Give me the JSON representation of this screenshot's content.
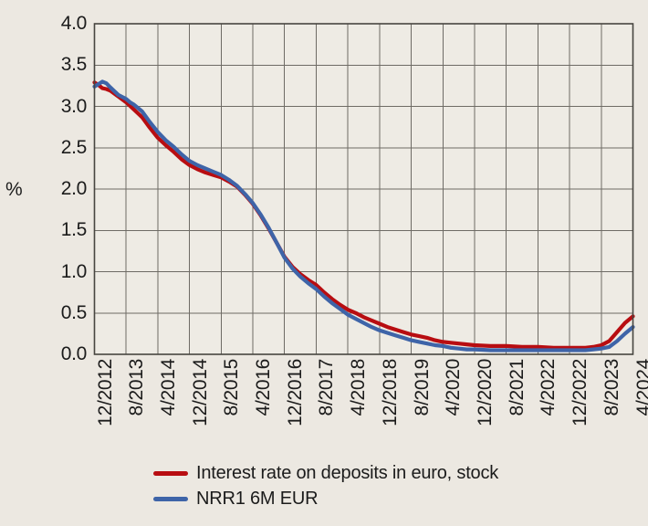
{
  "colors": {
    "background": "#ECE8E1",
    "plot_background": "#EEEBE4",
    "grid": "#6E6B65",
    "border": "#474540",
    "text": "#1B1B1B",
    "series_red": "#B80D11",
    "series_blue": "#3E64A8"
  },
  "chart_data": {
    "type": "line",
    "title": "",
    "ylabel": "%",
    "xlabel": "",
    "grid": true,
    "legend_position": "bottom",
    "ylim": [
      0.0,
      4.0
    ],
    "y_tick_step": 0.5,
    "y_tick_labels": [
      "0.0",
      "0.5",
      "1.0",
      "1.5",
      "2.0",
      "2.5",
      "3.0",
      "3.5",
      "4.0"
    ],
    "xlim_months": [
      0,
      136
    ],
    "x_tick_months": [
      0,
      8,
      16,
      24,
      32,
      40,
      48,
      56,
      64,
      72,
      80,
      88,
      96,
      104,
      112,
      120,
      128,
      136
    ],
    "x_tick_labels": [
      "12/2012",
      "8/2013",
      "4/2014",
      "12/2014",
      "8/2015",
      "4/2016",
      "12/2016",
      "8/2017",
      "4/2018",
      "12/2018",
      "8/2019",
      "4/2020",
      "12/2020",
      "8/2021",
      "4/2022",
      "12/2022",
      "8/2023",
      "4/2024"
    ],
    "series": [
      {
        "name": "Interest rate on deposits in euro, stock",
        "color": "#B80D11",
        "points": [
          [
            0,
            3.29
          ],
          [
            1,
            3.26
          ],
          [
            2,
            3.22
          ],
          [
            3,
            3.21
          ],
          [
            4,
            3.19
          ],
          [
            6,
            3.12
          ],
          [
            8,
            3.05
          ],
          [
            10,
            2.96
          ],
          [
            12,
            2.87
          ],
          [
            14,
            2.74
          ],
          [
            16,
            2.62
          ],
          [
            18,
            2.53
          ],
          [
            20,
            2.45
          ],
          [
            22,
            2.36
          ],
          [
            24,
            2.29
          ],
          [
            26,
            2.24
          ],
          [
            28,
            2.2
          ],
          [
            30,
            2.17
          ],
          [
            32,
            2.14
          ],
          [
            34,
            2.09
          ],
          [
            36,
            2.03
          ],
          [
            38,
            1.93
          ],
          [
            40,
            1.82
          ],
          [
            42,
            1.68
          ],
          [
            44,
            1.52
          ],
          [
            46,
            1.35
          ],
          [
            48,
            1.18
          ],
          [
            50,
            1.06
          ],
          [
            52,
            0.97
          ],
          [
            54,
            0.9
          ],
          [
            56,
            0.84
          ],
          [
            58,
            0.75
          ],
          [
            60,
            0.67
          ],
          [
            62,
            0.6
          ],
          [
            64,
            0.54
          ],
          [
            66,
            0.5
          ],
          [
            68,
            0.45
          ],
          [
            70,
            0.41
          ],
          [
            72,
            0.37
          ],
          [
            74,
            0.33
          ],
          [
            76,
            0.3
          ],
          [
            78,
            0.27
          ],
          [
            80,
            0.24
          ],
          [
            82,
            0.22
          ],
          [
            84,
            0.2
          ],
          [
            86,
            0.17
          ],
          [
            88,
            0.15
          ],
          [
            90,
            0.14
          ],
          [
            92,
            0.13
          ],
          [
            94,
            0.12
          ],
          [
            96,
            0.11
          ],
          [
            100,
            0.1
          ],
          [
            104,
            0.1
          ],
          [
            108,
            0.09
          ],
          [
            112,
            0.09
          ],
          [
            116,
            0.08
          ],
          [
            120,
            0.08
          ],
          [
            124,
            0.08
          ],
          [
            126,
            0.09
          ],
          [
            128,
            0.11
          ],
          [
            130,
            0.16
          ],
          [
            132,
            0.27
          ],
          [
            134,
            0.38
          ],
          [
            136,
            0.46
          ]
        ]
      },
      {
        "name": "NRR1 6M EUR",
        "color": "#3E64A8",
        "points": [
          [
            0,
            3.24
          ],
          [
            1,
            3.27
          ],
          [
            2,
            3.3
          ],
          [
            3,
            3.28
          ],
          [
            4,
            3.23
          ],
          [
            6,
            3.14
          ],
          [
            8,
            3.09
          ],
          [
            9,
            3.05
          ],
          [
            10,
            3.02
          ],
          [
            12,
            2.94
          ],
          [
            14,
            2.81
          ],
          [
            16,
            2.69
          ],
          [
            18,
            2.59
          ],
          [
            20,
            2.51
          ],
          [
            22,
            2.42
          ],
          [
            24,
            2.34
          ],
          [
            26,
            2.29
          ],
          [
            28,
            2.25
          ],
          [
            30,
            2.21
          ],
          [
            32,
            2.17
          ],
          [
            34,
            2.11
          ],
          [
            36,
            2.04
          ],
          [
            38,
            1.94
          ],
          [
            40,
            1.83
          ],
          [
            42,
            1.69
          ],
          [
            44,
            1.53
          ],
          [
            46,
            1.35
          ],
          [
            48,
            1.17
          ],
          [
            50,
            1.04
          ],
          [
            52,
            0.94
          ],
          [
            54,
            0.86
          ],
          [
            56,
            0.79
          ],
          [
            58,
            0.7
          ],
          [
            60,
            0.62
          ],
          [
            62,
            0.55
          ],
          [
            64,
            0.48
          ],
          [
            66,
            0.43
          ],
          [
            68,
            0.38
          ],
          [
            70,
            0.33
          ],
          [
            72,
            0.29
          ],
          [
            74,
            0.26
          ],
          [
            76,
            0.23
          ],
          [
            78,
            0.2
          ],
          [
            80,
            0.17
          ],
          [
            82,
            0.15
          ],
          [
            84,
            0.13
          ],
          [
            86,
            0.11
          ],
          [
            88,
            0.1
          ],
          [
            90,
            0.08
          ],
          [
            92,
            0.07
          ],
          [
            94,
            0.06
          ],
          [
            96,
            0.06
          ],
          [
            100,
            0.05
          ],
          [
            104,
            0.05
          ],
          [
            108,
            0.05
          ],
          [
            112,
            0.05
          ],
          [
            116,
            0.05
          ],
          [
            120,
            0.05
          ],
          [
            124,
            0.05
          ],
          [
            126,
            0.06
          ],
          [
            128,
            0.07
          ],
          [
            130,
            0.09
          ],
          [
            132,
            0.16
          ],
          [
            134,
            0.25
          ],
          [
            136,
            0.33
          ]
        ]
      }
    ]
  }
}
